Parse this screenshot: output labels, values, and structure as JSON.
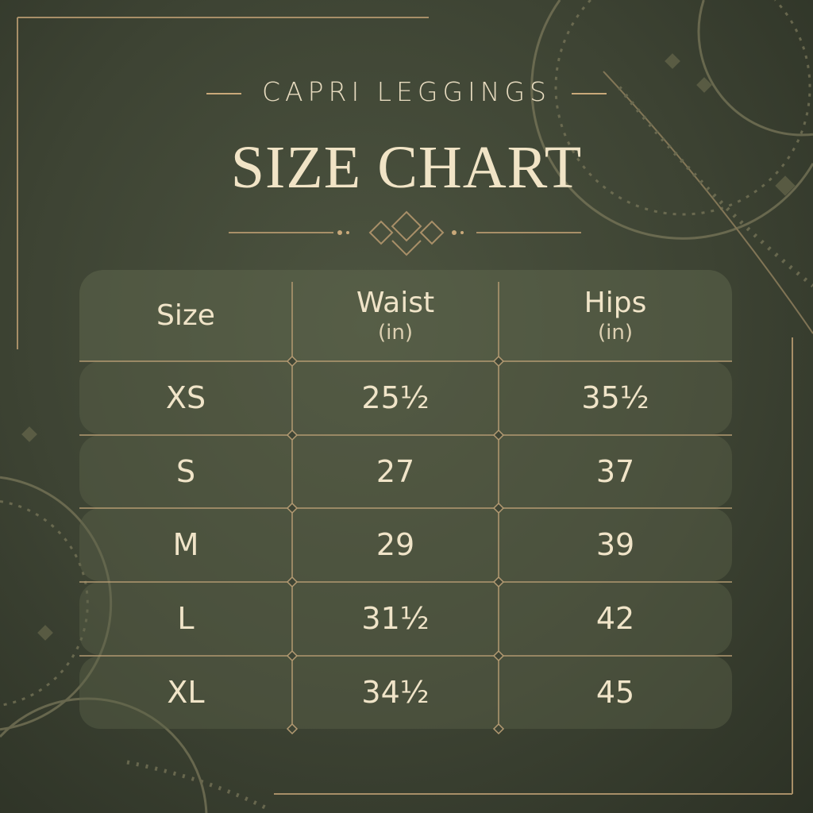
{
  "subtitle": "CAPRI LEGGINGS",
  "title": "SIZE CHART",
  "colors": {
    "background": "#3d4333",
    "accent_gold": "#c9a97a",
    "text": "#efe3c8"
  },
  "table": {
    "headers": [
      {
        "label": "Size",
        "unit": ""
      },
      {
        "label": "Waist",
        "unit": "(in)"
      },
      {
        "label": "Hips",
        "unit": "(in)"
      }
    ],
    "rows": [
      {
        "size": "XS",
        "waist": "25½",
        "hips": "35½"
      },
      {
        "size": "S",
        "waist": "27",
        "hips": "37"
      },
      {
        "size": "M",
        "waist": "29",
        "hips": "39"
      },
      {
        "size": "L",
        "waist": "31½",
        "hips": "42"
      },
      {
        "size": "XL",
        "waist": "34½",
        "hips": "45"
      }
    ]
  }
}
